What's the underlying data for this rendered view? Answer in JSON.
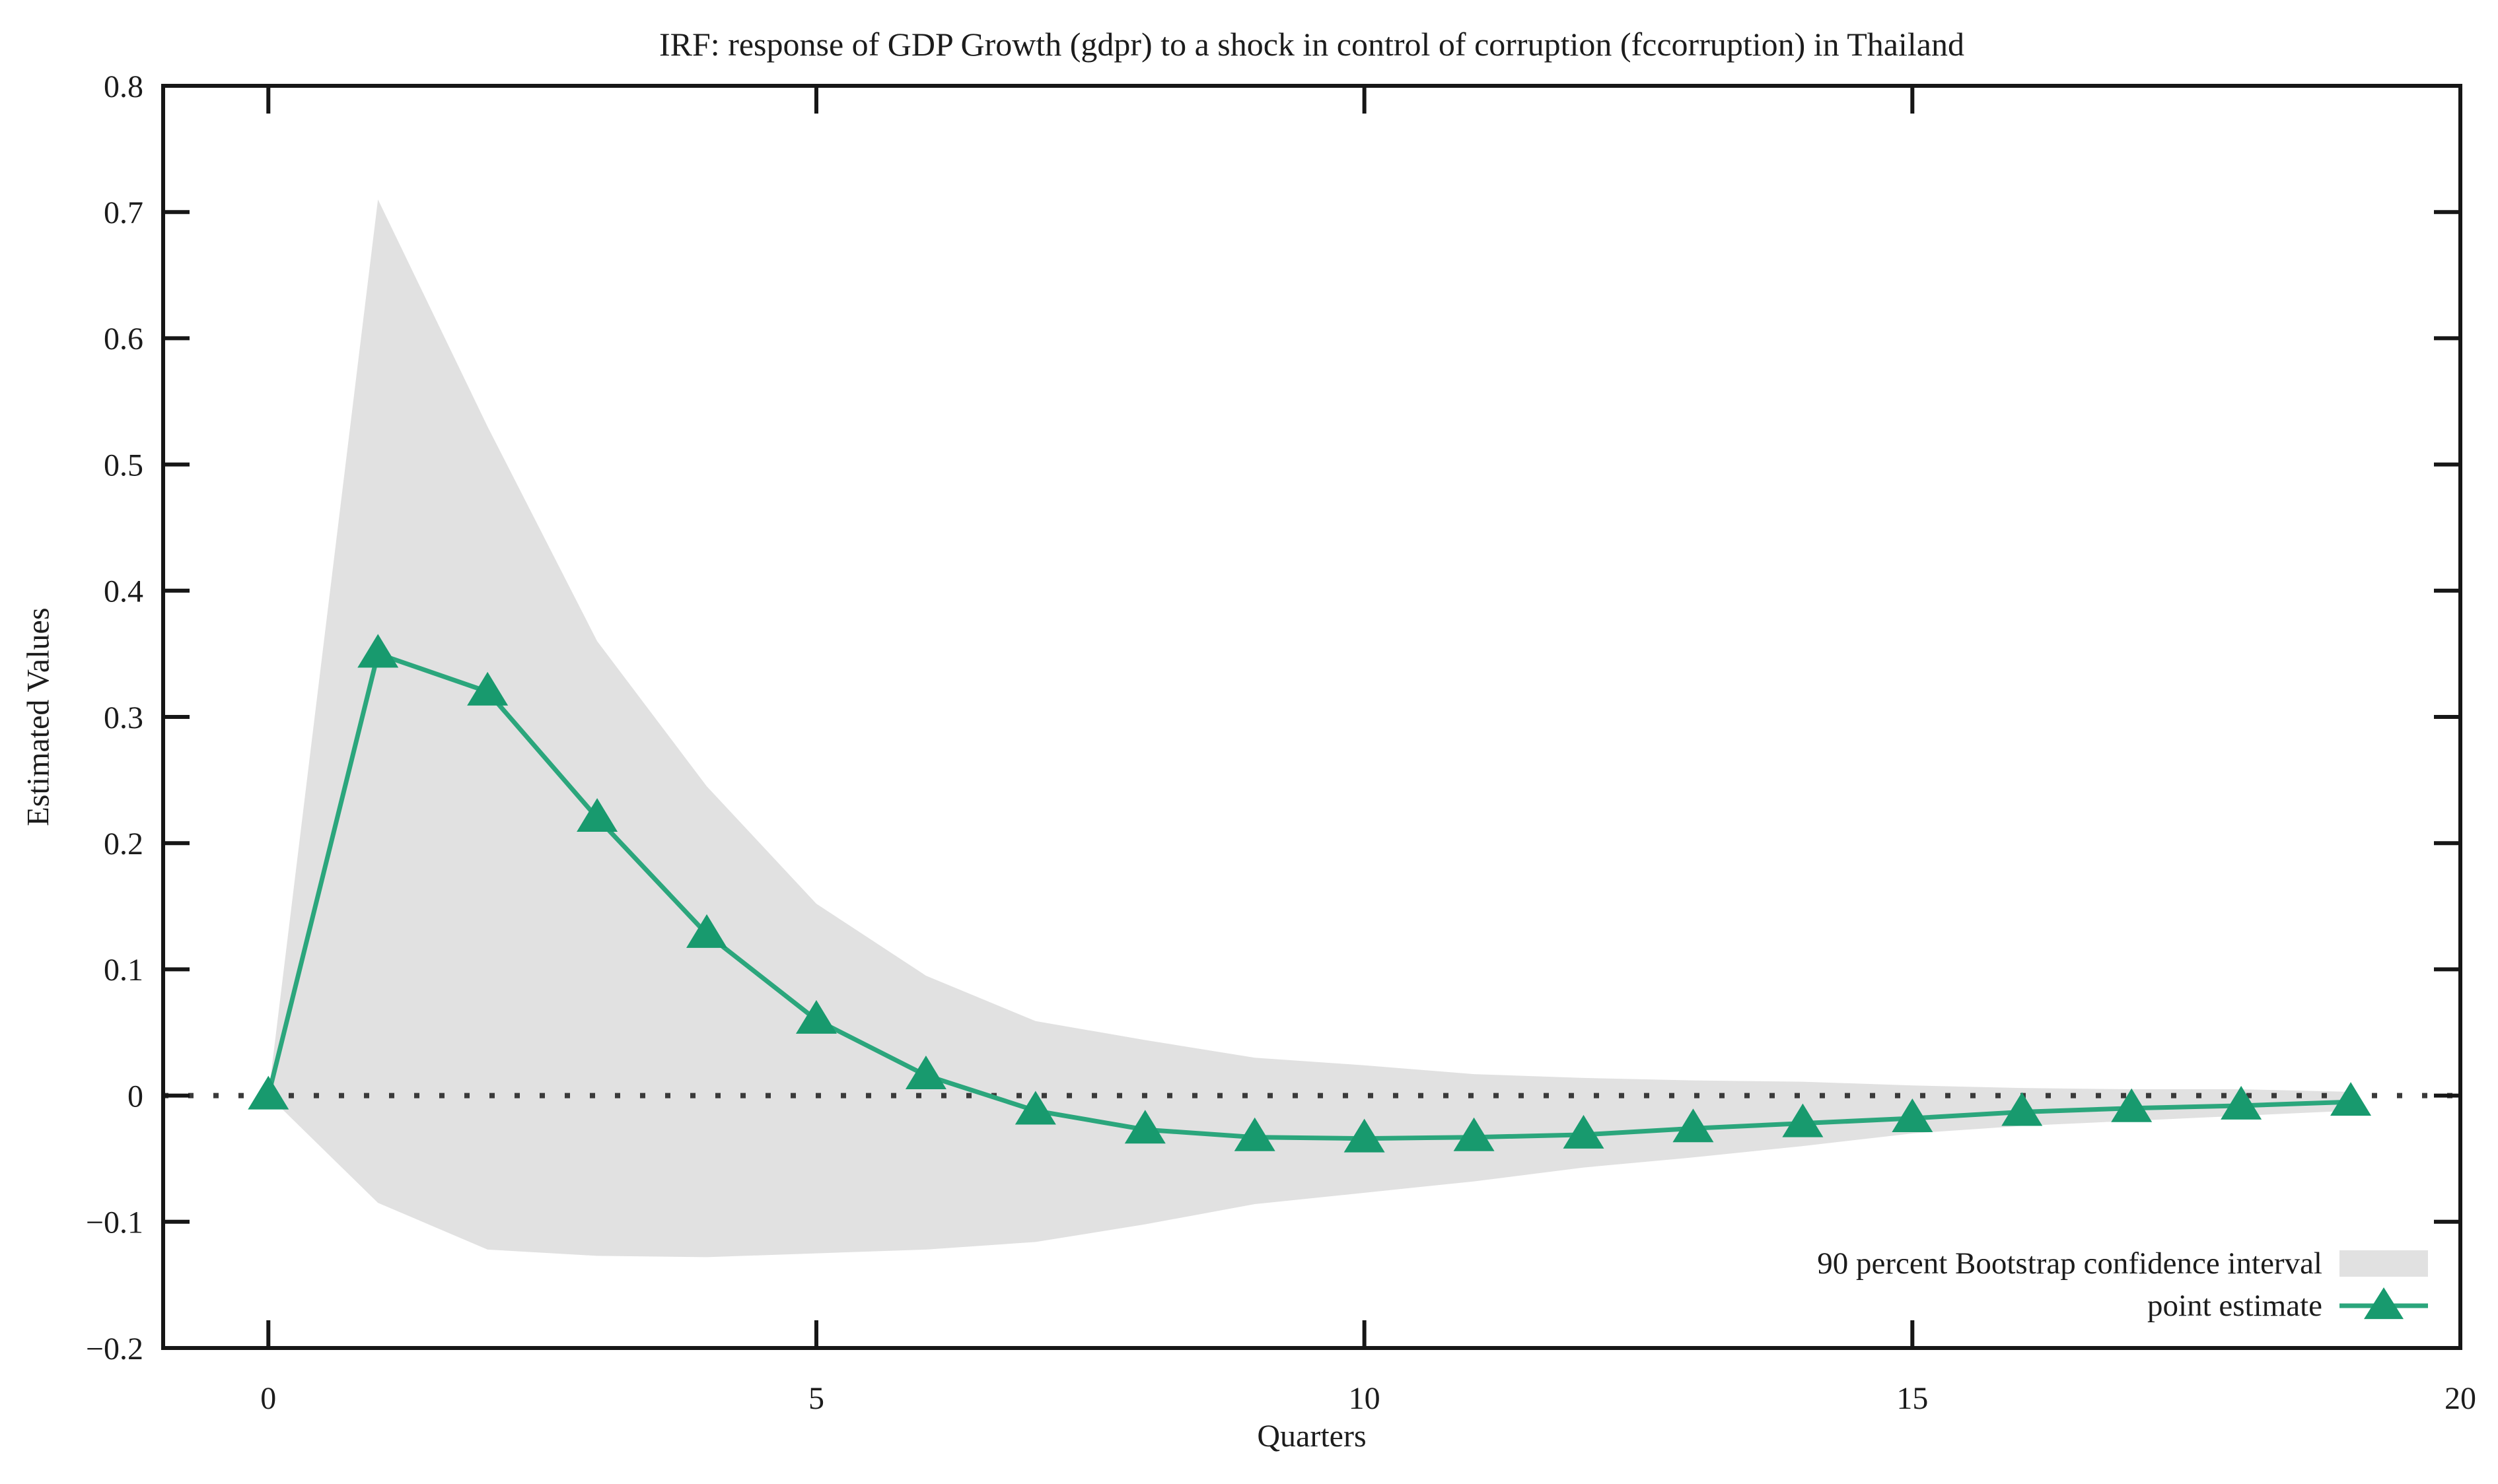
{
  "page": {
    "background": "#ffffff"
  },
  "chart_data": {
    "type": "line",
    "title": "IRF: response of GDP Growth (gdpr) to a shock in control of corruption (fccorruption) in Thailand",
    "xlabel": "Quarters",
    "ylabel": "Estimated Values",
    "x": [
      0,
      1,
      2,
      3,
      4,
      5,
      6,
      7,
      8,
      9,
      10,
      11,
      12,
      13,
      14,
      15,
      16,
      17,
      18,
      19
    ],
    "series": [
      {
        "name": "point estimate",
        "type": "line",
        "marker": "triangle-up",
        "line_color": "#2ba67c",
        "marker_color": "#189a6e",
        "values": [
          0.0,
          0.35,
          0.32,
          0.22,
          0.128,
          0.06,
          0.016,
          -0.012,
          -0.027,
          -0.033,
          -0.034,
          -0.033,
          -0.031,
          -0.026,
          -0.022,
          -0.018,
          -0.013,
          -0.01,
          -0.008,
          -0.005
        ]
      },
      {
        "name": "90 percent Bootstrap confidence interval",
        "type": "band",
        "fill_color": "#e1e1e1",
        "upper": [
          0.0,
          0.71,
          0.53,
          0.36,
          0.245,
          0.152,
          0.095,
          0.059,
          0.044,
          0.03,
          0.024,
          0.017,
          0.014,
          0.012,
          0.011,
          0.008,
          0.006,
          0.005,
          0.005,
          0.003
        ],
        "lower": [
          0.0,
          -0.085,
          -0.122,
          -0.127,
          -0.128,
          -0.125,
          -0.122,
          -0.116,
          -0.102,
          -0.086,
          -0.077,
          -0.068,
          -0.057,
          -0.049,
          -0.04,
          -0.03,
          -0.024,
          -0.02,
          -0.016,
          -0.012
        ]
      }
    ],
    "xlim": [
      -0.96,
      20
    ],
    "ylim": [
      -0.2,
      0.8
    ],
    "x_ticks": [
      {
        "v": 0,
        "label": "0"
      },
      {
        "v": 5,
        "label": "5"
      },
      {
        "v": 10,
        "label": "10"
      },
      {
        "v": 15,
        "label": "15"
      },
      {
        "v": 20,
        "label": "20"
      }
    ],
    "y_ticks": [
      {
        "v": 0.8,
        "label": "0.8"
      },
      {
        "v": 0.7,
        "label": "0.7"
      },
      {
        "v": 0.6,
        "label": "0.6"
      },
      {
        "v": 0.5,
        "label": "0.5"
      },
      {
        "v": 0.4,
        "label": "0.4"
      },
      {
        "v": 0.3,
        "label": "0.3"
      },
      {
        "v": 0.2,
        "label": "0.2"
      },
      {
        "v": 0.1,
        "label": "0.1"
      },
      {
        "v": 0,
        "label": "0"
      },
      {
        "v": -0.1,
        "label": "−0.1"
      },
      {
        "v": -0.2,
        "label": "−0.2"
      }
    ],
    "zero_line": {
      "style": "dotted",
      "color": "#3a3a3a"
    },
    "grid": false,
    "frame_color": "#161616",
    "legend_position": "bottom-right"
  },
  "legend": {
    "items": [
      {
        "label": "90 percent Bootstrap confidence interval",
        "swatch": "band"
      },
      {
        "label": "point estimate",
        "swatch": "line-triangle"
      }
    ]
  }
}
